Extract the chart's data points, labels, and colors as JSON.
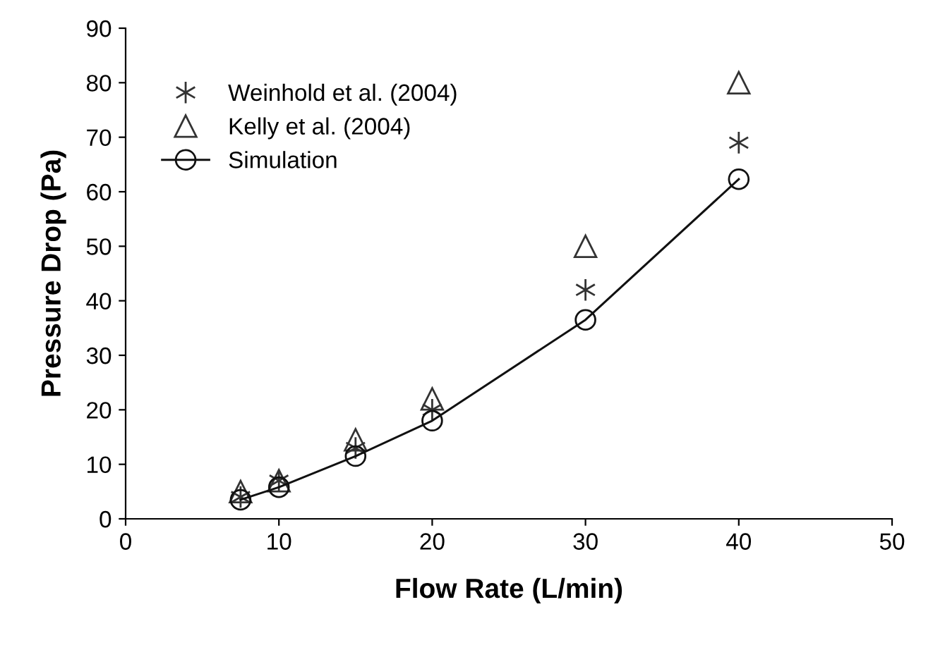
{
  "chart_data": {
    "type": "scatter",
    "xlabel": "Flow Rate (L/min)",
    "ylabel": "Pressure Drop (Pa)",
    "xlim": [
      0,
      50
    ],
    "xticks": [
      0,
      10,
      20,
      30,
      40,
      50
    ],
    "ylim": [
      0,
      90
    ],
    "yticks": [
      0,
      10,
      20,
      30,
      40,
      50,
      60,
      70,
      80,
      90
    ],
    "grid": false,
    "legend": "top left",
    "series": [
      {
        "name": "Weinhold et al. (2004)",
        "marker": "cross",
        "color": "#333333",
        "x": [
          7.5,
          10,
          15,
          20,
          30,
          40
        ],
        "values": [
          4,
          7,
          13,
          20,
          42,
          69
        ]
      },
      {
        "name": "Kelly et al. (2004)",
        "marker": "triangle",
        "color": "#333333",
        "x": [
          7.5,
          10,
          15,
          20,
          30,
          40
        ],
        "values": [
          5,
          7,
          14.5,
          22,
          50,
          80
        ]
      },
      {
        "name": "Simulation",
        "type": "line",
        "marker": "circle",
        "color": "#111111",
        "x": [
          7.5,
          10,
          15,
          20,
          30,
          40
        ],
        "values": [
          3.5,
          5.8,
          11.5,
          18,
          36.5,
          62.3
        ]
      }
    ]
  }
}
